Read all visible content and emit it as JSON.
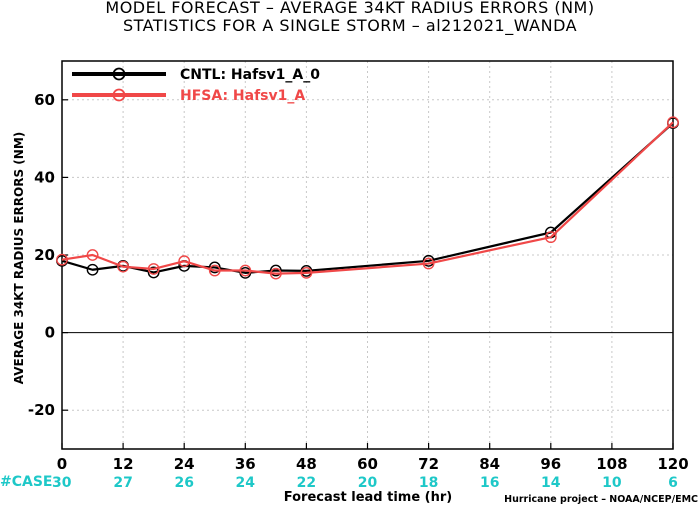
{
  "title_line1": "MODEL FORECAST – AVERAGE 34KT RADIUS ERRORS (NM)",
  "title_line2": "STATISTICS FOR A SINGLE STORM – al212021_WANDA",
  "case_label": "#CASE",
  "credit": "Hurricane project – NOAA/NCEP/EMC",
  "colors": {
    "cntl": "#000000",
    "hfsa": "#f04848",
    "cases": "#1ec8c8",
    "grid": "#c8c8c8"
  },
  "chart_data": {
    "type": "line",
    "xlabel": "Forecast lead time (hr)",
    "ylabel": "AVERAGE 34KT RADIUS ERRORS (NM)",
    "xlim": [
      0,
      120
    ],
    "ylim": [
      -30,
      70
    ],
    "xticks": [
      0,
      12,
      24,
      36,
      48,
      60,
      72,
      84,
      96,
      108,
      120
    ],
    "yticks": [
      -20,
      0,
      20,
      40,
      60
    ],
    "grid": true,
    "legend_position": "top-left",
    "case_ticks": [
      0,
      12,
      24,
      36,
      48,
      60,
      72,
      84,
      96,
      108,
      120
    ],
    "case_counts": [
      30,
      27,
      26,
      24,
      22,
      20,
      18,
      16,
      14,
      10,
      6
    ],
    "series": [
      {
        "name": "CNTL: Hafsv1_A_0",
        "x": [
          0,
          6,
          12,
          18,
          24,
          30,
          36,
          42,
          48,
          72,
          96,
          120
        ],
        "y": [
          18.5,
          16.2,
          17.2,
          15.5,
          17.2,
          16.8,
          15.4,
          16.0,
          15.9,
          18.5,
          25.8,
          54.0
        ]
      },
      {
        "name": "HFSA: Hafsv1_A",
        "x": [
          0,
          6,
          12,
          18,
          24,
          30,
          36,
          42,
          48,
          72,
          96,
          120
        ],
        "y": [
          18.8,
          20.0,
          17.0,
          16.4,
          18.4,
          16.0,
          16.0,
          15.2,
          15.4,
          17.8,
          24.6,
          54.2
        ]
      }
    ]
  }
}
